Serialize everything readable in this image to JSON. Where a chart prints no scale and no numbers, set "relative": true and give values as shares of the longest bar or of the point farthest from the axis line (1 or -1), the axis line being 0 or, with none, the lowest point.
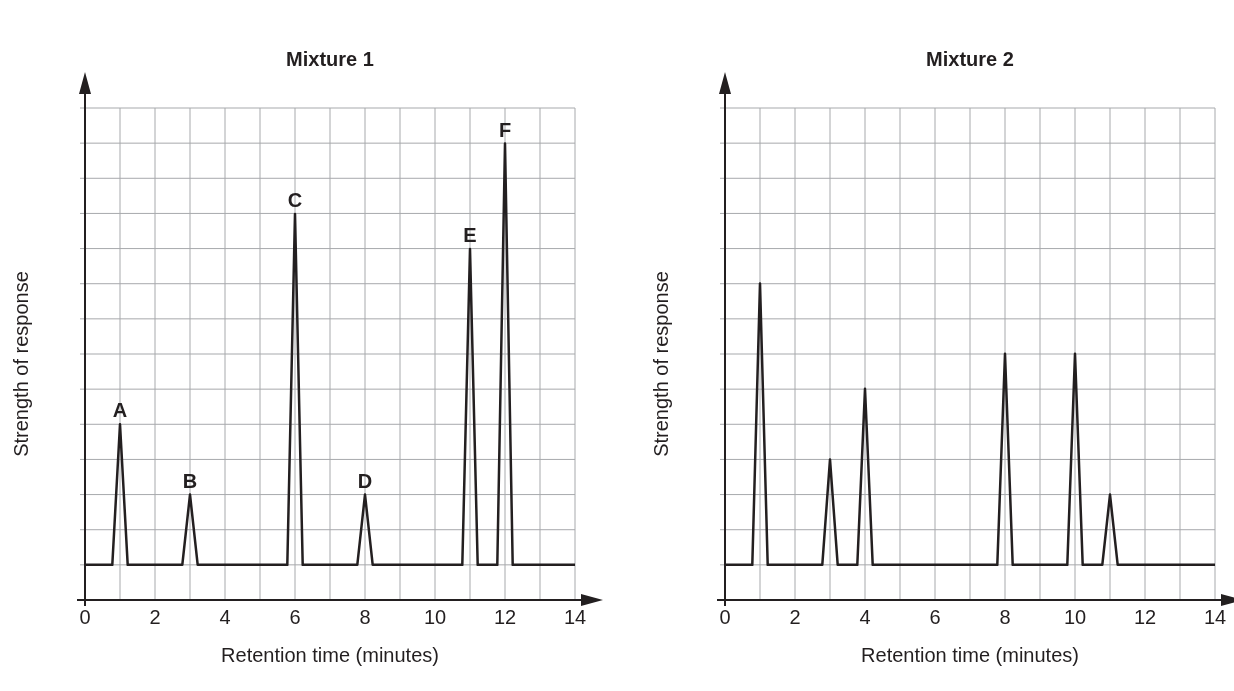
{
  "chart_data": [
    {
      "type": "line",
      "title": "Mixture 1",
      "xlabel": "Retention time (minutes)",
      "ylabel": "Strength of response",
      "relative": true,
      "grid": true,
      "marker": "none",
      "line_style": "solid",
      "xlim": [
        0,
        14
      ],
      "xticks": [
        0,
        {
          "value": 1,
          "label": null
        },
        2,
        {
          "value": 3,
          "label": null
        },
        4,
        {
          "value": 5,
          "label": null
        },
        6,
        {
          "value": 7,
          "label": null
        },
        8,
        {
          "value": 9,
          "label": null
        },
        10,
        {
          "value": 11,
          "label": null
        },
        12,
        {
          "value": 13,
          "label": null
        },
        14
      ],
      "x": [
        0,
        0.78,
        1,
        1.22,
        2.78,
        3,
        3.22,
        5.78,
        6,
        6.22,
        7.78,
        8,
        8.22,
        10.78,
        11,
        11.22,
        11.78,
        12,
        12.22,
        14
      ],
      "series": [
        {
          "color": "#231f20",
          "values": [
            0.077,
            0.077,
            0.385,
            0.077,
            0.077,
            0.231,
            0.077,
            0.077,
            0.846,
            0.077,
            0.077,
            0.231,
            0.077,
            0.077,
            0.769,
            0.077,
            0.077,
            1,
            0.077,
            0.077
          ]
        }
      ],
      "annotations": [
        {
          "text": "A",
          "x": 1,
          "y": 0.385
        },
        {
          "text": "B",
          "x": 3,
          "y": 0.231
        },
        {
          "text": "C",
          "x": 6,
          "y": 0.846
        },
        {
          "text": "D",
          "x": 8,
          "y": 0.231
        },
        {
          "text": "E",
          "x": 11,
          "y": 0.769
        },
        {
          "text": "F",
          "x": 12,
          "y": 1
        }
      ]
    },
    {
      "type": "line",
      "title": "Mixture 2",
      "xlabel": "Retention time (minutes)",
      "ylabel": "Strength of response",
      "relative": true,
      "grid": true,
      "marker": "none",
      "line_style": "solid",
      "xlim": [
        0,
        14
      ],
      "xticks": [
        0,
        {
          "value": 1,
          "label": null
        },
        2,
        {
          "value": 3,
          "label": null
        },
        4,
        {
          "value": 5,
          "label": null
        },
        6,
        {
          "value": 7,
          "label": null
        },
        8,
        {
          "value": 9,
          "label": null
        },
        10,
        {
          "value": 11,
          "label": null
        },
        12,
        {
          "value": 13,
          "label": null
        },
        14
      ],
      "x": [
        0,
        0.78,
        1,
        1.22,
        2.78,
        3,
        3.22,
        3.78,
        4,
        4.22,
        7.78,
        8,
        8.22,
        9.78,
        10,
        10.22,
        10.78,
        11,
        11.22,
        14
      ],
      "series": [
        {
          "color": "#231f20",
          "values": [
            0.111,
            0.111,
            1,
            0.111,
            0.111,
            0.444,
            0.111,
            0.111,
            0.667,
            0.111,
            0.111,
            0.778,
            0.111,
            0.111,
            0.778,
            0.111,
            0.111,
            0.333,
            0.111,
            0.111
          ]
        }
      ]
    }
  ]
}
